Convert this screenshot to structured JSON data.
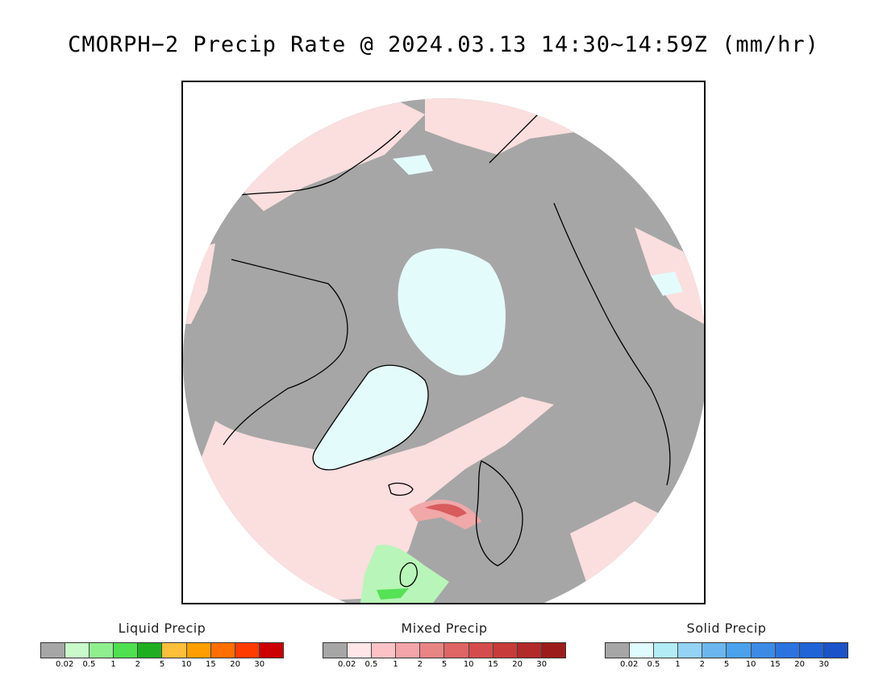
{
  "title": "CMORPH−2 Precip Rate @ 2024.03.13 14:30~14:59Z (mm/hr)",
  "map": {
    "projection": "polar-stereographic-north",
    "colors": {
      "no_precip": "#a6a6a6",
      "mixed_light": "#fbdede",
      "mixed_mid": "#f0a8a8",
      "mixed_heavy": "#d85c5c",
      "solid_light": "#e4fbfc",
      "liquid_light": "#b8f5b8",
      "liquid_mid": "#55e255",
      "coast": "#000000"
    }
  },
  "legends": [
    {
      "title": "Liquid Precip",
      "colors": [
        "#a6a6a6",
        "#c9fac9",
        "#8fef8f",
        "#4fe04f",
        "#1fae1f",
        "#ffbf3a",
        "#ff9e00",
        "#ff6f00",
        "#ff3b00",
        "#cc0000"
      ],
      "ticks": [
        "0.02",
        "0.5",
        "1",
        "2",
        "5",
        "10",
        "15",
        "20",
        "30"
      ]
    },
    {
      "title": "Mixed Precip",
      "colors": [
        "#a6a6a6",
        "#ffe6e8",
        "#fcc2c6",
        "#f3a4a8",
        "#e98484",
        "#df6464",
        "#d54c4c",
        "#c83b3b",
        "#b22a2a",
        "#9c1c1c"
      ],
      "ticks": [
        "0.02",
        "0.5",
        "1",
        "2",
        "5",
        "10",
        "15",
        "20",
        "30"
      ]
    },
    {
      "title": "Solid Precip",
      "colors": [
        "#a6a6a6",
        "#e0fbfd",
        "#b3ecf5",
        "#94d2f6",
        "#6cb6ef",
        "#4aa1ec",
        "#3c8ae6",
        "#2b74e0",
        "#1f63d6",
        "#1a52c8"
      ],
      "ticks": [
        "0.02",
        "0.5",
        "1",
        "2",
        "5",
        "10",
        "15",
        "20",
        "30"
      ]
    }
  ]
}
